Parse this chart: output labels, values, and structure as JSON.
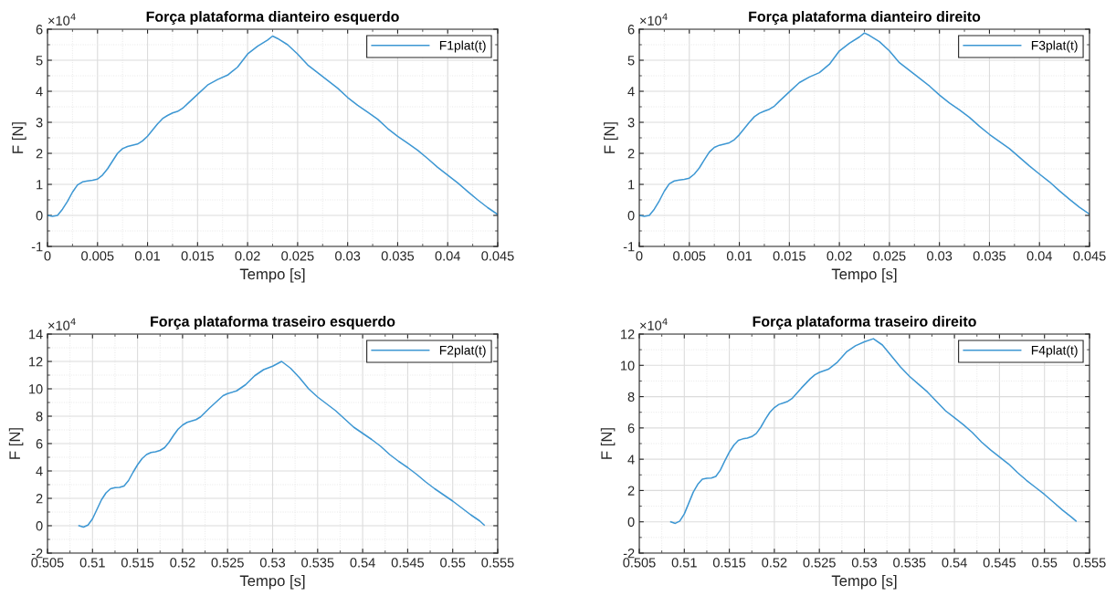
{
  "chart_data": [
    {
      "type": "line",
      "title": "Força plataforma dianteiro esquerdo",
      "xlabel": "Tempo [s]",
      "ylabel": "F [N]",
      "annotations": [
        "×10$^{4}$"
      ],
      "legend": "top right",
      "grid": true,
      "xlim": [
        0,
        0.045
      ],
      "xticks": [
        0,
        0.005,
        0.01,
        0.015,
        0.02,
        0.025,
        0.03,
        0.035,
        0.04,
        0.045
      ],
      "ylim": [
        -1,
        6
      ],
      "yticks": [
        -1,
        0,
        1,
        2,
        3,
        4,
        5,
        6
      ],
      "series": [
        {
          "name": "F1plat(t)",
          "color": "#3d97d3",
          "x": [
            0,
            0.0005,
            0.001,
            0.0015,
            0.002,
            0.0025,
            0.003,
            0.0035,
            0.004,
            0.0045,
            0.005,
            0.0055,
            0.006,
            0.0065,
            0.007,
            0.0075,
            0.008,
            0.009,
            0.0095,
            0.01,
            0.0105,
            0.011,
            0.0115,
            0.012,
            0.0125,
            0.013,
            0.0135,
            0.014,
            0.015,
            0.016,
            0.017,
            0.018,
            0.019,
            0.02,
            0.021,
            0.022,
            0.0225,
            0.023,
            0.024,
            0.025,
            0.026,
            0.027,
            0.028,
            0.029,
            0.03,
            0.031,
            0.032,
            0.033,
            0.034,
            0.035,
            0.036,
            0.037,
            0.038,
            0.039,
            0.04,
            0.041,
            0.042,
            0.043,
            0.044,
            0.045
          ],
          "values": [
            0,
            -0.03,
            0,
            0.2,
            0.45,
            0.75,
            0.98,
            1.08,
            1.11,
            1.13,
            1.17,
            1.3,
            1.5,
            1.75,
            2.0,
            2.15,
            2.22,
            2.3,
            2.4,
            2.55,
            2.75,
            2.95,
            3.12,
            3.22,
            3.3,
            3.35,
            3.45,
            3.6,
            3.9,
            4.2,
            4.38,
            4.52,
            4.78,
            5.2,
            5.45,
            5.65,
            5.78,
            5.7,
            5.5,
            5.2,
            4.85,
            4.6,
            4.35,
            4.1,
            3.8,
            3.55,
            3.33,
            3.1,
            2.8,
            2.55,
            2.33,
            2.1,
            1.83,
            1.55,
            1.3,
            1.05,
            0.77,
            0.5,
            0.25,
            0.03
          ]
        }
      ]
    },
    {
      "type": "line",
      "title": "Força plataforma dianteiro direito",
      "xlabel": "Tempo [s]",
      "ylabel": "F [N]",
      "annotations": [
        "×10$^{4}$"
      ],
      "legend": "top right",
      "grid": true,
      "xlim": [
        0,
        0.045
      ],
      "xticks": [
        0,
        0.005,
        0.01,
        0.015,
        0.02,
        0.025,
        0.03,
        0.035,
        0.04,
        0.045
      ],
      "ylim": [
        -1,
        6
      ],
      "yticks": [
        -1,
        0,
        1,
        2,
        3,
        4,
        5,
        6
      ],
      "series": [
        {
          "name": "F3plat(t)",
          "color": "#3d97d3",
          "x": [
            0,
            0.0005,
            0.001,
            0.0015,
            0.002,
            0.0025,
            0.003,
            0.0035,
            0.004,
            0.0045,
            0.005,
            0.0055,
            0.006,
            0.0065,
            0.007,
            0.0075,
            0.008,
            0.009,
            0.0095,
            0.01,
            0.0105,
            0.011,
            0.0115,
            0.012,
            0.0125,
            0.013,
            0.0135,
            0.014,
            0.015,
            0.016,
            0.017,
            0.018,
            0.019,
            0.02,
            0.021,
            0.022,
            0.0225,
            0.023,
            0.024,
            0.025,
            0.026,
            0.027,
            0.028,
            0.029,
            0.03,
            0.031,
            0.032,
            0.033,
            0.034,
            0.035,
            0.036,
            0.037,
            0.038,
            0.039,
            0.04,
            0.041,
            0.042,
            0.043,
            0.044,
            0.045
          ],
          "values": [
            0,
            -0.03,
            0,
            0.2,
            0.47,
            0.78,
            1.02,
            1.11,
            1.14,
            1.16,
            1.2,
            1.33,
            1.53,
            1.79,
            2.04,
            2.19,
            2.26,
            2.34,
            2.44,
            2.6,
            2.8,
            3.0,
            3.18,
            3.29,
            3.36,
            3.42,
            3.52,
            3.68,
            3.98,
            4.28,
            4.46,
            4.6,
            4.87,
            5.3,
            5.55,
            5.75,
            5.88,
            5.8,
            5.6,
            5.3,
            4.92,
            4.67,
            4.42,
            4.17,
            3.88,
            3.62,
            3.4,
            3.16,
            2.87,
            2.61,
            2.38,
            2.15,
            1.87,
            1.59,
            1.33,
            1.08,
            0.79,
            0.52,
            0.26,
            0.04
          ]
        }
      ]
    },
    {
      "type": "line",
      "title": "Força plataforma traseiro esquerdo",
      "xlabel": "Tempo [s]",
      "ylabel": "F [N]",
      "annotations": [
        "×10$^{4}$"
      ],
      "legend": "top right",
      "grid": true,
      "xlim": [
        0.505,
        0.555
      ],
      "xticks": [
        0.505,
        0.51,
        0.515,
        0.52,
        0.525,
        0.53,
        0.535,
        0.54,
        0.545,
        0.55,
        0.555
      ],
      "ylim": [
        -2,
        14
      ],
      "yticks": [
        -2,
        0,
        2,
        4,
        6,
        8,
        10,
        12,
        14
      ],
      "series": [
        {
          "name": "F2plat(t)",
          "color": "#3d97d3",
          "x": [
            0.5085,
            0.509,
            0.5095,
            0.51,
            0.5105,
            0.511,
            0.5115,
            0.512,
            0.5125,
            0.513,
            0.5135,
            0.514,
            0.5145,
            0.515,
            0.5155,
            0.516,
            0.5165,
            0.517,
            0.5175,
            0.518,
            0.5185,
            0.519,
            0.5195,
            0.52,
            0.5205,
            0.521,
            0.5215,
            0.522,
            0.523,
            0.524,
            0.5245,
            0.525,
            0.526,
            0.527,
            0.528,
            0.529,
            0.53,
            0.531,
            0.532,
            0.533,
            0.534,
            0.535,
            0.536,
            0.537,
            0.538,
            0.539,
            0.54,
            0.541,
            0.542,
            0.543,
            0.544,
            0.545,
            0.546,
            0.547,
            0.548,
            0.549,
            0.55,
            0.551,
            0.552,
            0.553,
            0.5535
          ],
          "values": [
            0,
            -0.1,
            0.05,
            0.5,
            1.2,
            1.9,
            2.4,
            2.7,
            2.78,
            2.8,
            2.9,
            3.3,
            3.9,
            4.45,
            4.9,
            5.2,
            5.35,
            5.4,
            5.5,
            5.7,
            6.1,
            6.6,
            7.05,
            7.35,
            7.55,
            7.65,
            7.75,
            7.95,
            8.6,
            9.2,
            9.5,
            9.65,
            9.85,
            10.3,
            10.95,
            11.4,
            11.65,
            12.0,
            11.5,
            10.8,
            10.0,
            9.4,
            8.9,
            8.4,
            7.8,
            7.2,
            6.75,
            6.3,
            5.8,
            5.2,
            4.7,
            4.25,
            3.75,
            3.2,
            2.7,
            2.25,
            1.8,
            1.3,
            0.8,
            0.35,
            0.05
          ]
        }
      ]
    },
    {
      "type": "line",
      "title": "Força plataforma traseiro direito",
      "xlabel": "Tempo [s]",
      "ylabel": "F [N]",
      "annotations": [
        "×10$^{4}$"
      ],
      "legend": "top right",
      "grid": true,
      "xlim": [
        0.505,
        0.555
      ],
      "xticks": [
        0.505,
        0.51,
        0.515,
        0.52,
        0.525,
        0.53,
        0.535,
        0.54,
        0.545,
        0.55,
        0.555
      ],
      "ylim": [
        -2,
        12
      ],
      "yticks": [
        -2,
        0,
        2,
        4,
        6,
        8,
        10,
        12
      ],
      "series": [
        {
          "name": "F4plat(t)",
          "color": "#3d97d3",
          "x": [
            0.5085,
            0.509,
            0.5095,
            0.51,
            0.5105,
            0.511,
            0.5115,
            0.512,
            0.5125,
            0.513,
            0.5135,
            0.514,
            0.5145,
            0.515,
            0.5155,
            0.516,
            0.5165,
            0.517,
            0.5175,
            0.518,
            0.5185,
            0.519,
            0.5195,
            0.52,
            0.5205,
            0.521,
            0.5215,
            0.522,
            0.523,
            0.524,
            0.5245,
            0.525,
            0.526,
            0.527,
            0.528,
            0.529,
            0.53,
            0.531,
            0.532,
            0.533,
            0.534,
            0.535,
            0.536,
            0.537,
            0.538,
            0.539,
            0.54,
            0.541,
            0.542,
            0.543,
            0.544,
            0.545,
            0.546,
            0.547,
            0.548,
            0.549,
            0.55,
            0.551,
            0.552,
            0.553,
            0.5535
          ],
          "values": [
            0,
            -0.1,
            0.05,
            0.5,
            1.2,
            1.9,
            2.4,
            2.72,
            2.78,
            2.8,
            2.9,
            3.3,
            3.9,
            4.45,
            4.9,
            5.2,
            5.3,
            5.35,
            5.45,
            5.65,
            6.05,
            6.55,
            7.0,
            7.3,
            7.5,
            7.6,
            7.7,
            7.9,
            8.55,
            9.15,
            9.4,
            9.55,
            9.75,
            10.2,
            10.85,
            11.25,
            11.5,
            11.7,
            11.3,
            10.6,
            9.9,
            9.3,
            8.8,
            8.3,
            7.7,
            7.1,
            6.65,
            6.2,
            5.7,
            5.1,
            4.6,
            4.15,
            3.7,
            3.15,
            2.65,
            2.2,
            1.75,
            1.25,
            0.75,
            0.3,
            0.05
          ]
        }
      ]
    }
  ]
}
